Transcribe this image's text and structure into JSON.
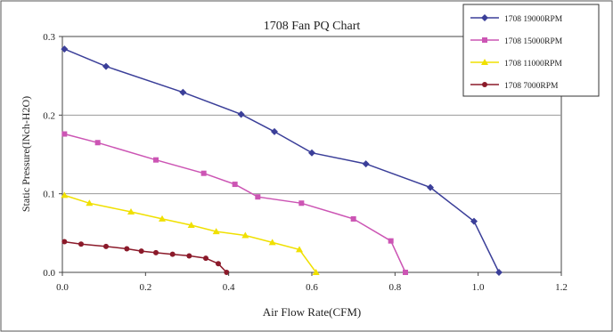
{
  "chart_data": {
    "type": "line",
    "title": "1708  Fan PQ Chart",
    "xlabel": "Air Flow Rate(CFM)",
    "ylabel": "Static Pressure(INch-H2O)",
    "xlim": [
      0,
      1.2
    ],
    "ylim": [
      0,
      0.3
    ],
    "x_ticks": [
      "0.0",
      "0.2",
      "0.4",
      "0.6",
      "0.8",
      "1.0",
      "1.2"
    ],
    "y_ticks": [
      "0.0",
      "0.1",
      "0.2",
      "0.3"
    ],
    "grid": "horizontal",
    "legend_position": "top-right",
    "series": [
      {
        "name": "1708  19000RPM",
        "color": "#3b3f99",
        "marker": "diamond",
        "points": [
          [
            0.005,
            0.284
          ],
          [
            0.105,
            0.262
          ],
          [
            0.29,
            0.229
          ],
          [
            0.43,
            0.201
          ],
          [
            0.51,
            0.179
          ],
          [
            0.6,
            0.152
          ],
          [
            0.73,
            0.138
          ],
          [
            0.885,
            0.108
          ],
          [
            0.99,
            0.065
          ],
          [
            1.05,
            0.0
          ]
        ]
      },
      {
        "name": "1708  15000RPM",
        "color": "#cc55b4",
        "marker": "square",
        "points": [
          [
            0.005,
            0.176
          ],
          [
            0.085,
            0.165
          ],
          [
            0.225,
            0.143
          ],
          [
            0.34,
            0.126
          ],
          [
            0.415,
            0.112
          ],
          [
            0.47,
            0.096
          ],
          [
            0.575,
            0.088
          ],
          [
            0.7,
            0.068
          ],
          [
            0.79,
            0.04
          ],
          [
            0.825,
            0.0
          ]
        ]
      },
      {
        "name": "1708  11000RPM",
        "color": "#f0e000",
        "marker": "triangle",
        "points": [
          [
            0.005,
            0.098
          ],
          [
            0.065,
            0.088
          ],
          [
            0.165,
            0.077
          ],
          [
            0.24,
            0.068
          ],
          [
            0.31,
            0.06
          ],
          [
            0.37,
            0.052
          ],
          [
            0.44,
            0.047
          ],
          [
            0.505,
            0.038
          ],
          [
            0.57,
            0.029
          ],
          [
            0.61,
            0.0
          ]
        ]
      },
      {
        "name": "1708  7000RPM",
        "color": "#8b1a2a",
        "marker": "circle",
        "points": [
          [
            0.005,
            0.039
          ],
          [
            0.045,
            0.036
          ],
          [
            0.105,
            0.033
          ],
          [
            0.155,
            0.03
          ],
          [
            0.19,
            0.027
          ],
          [
            0.225,
            0.025
          ],
          [
            0.265,
            0.023
          ],
          [
            0.305,
            0.021
          ],
          [
            0.345,
            0.018
          ],
          [
            0.375,
            0.011
          ],
          [
            0.395,
            0.0
          ]
        ]
      }
    ]
  }
}
